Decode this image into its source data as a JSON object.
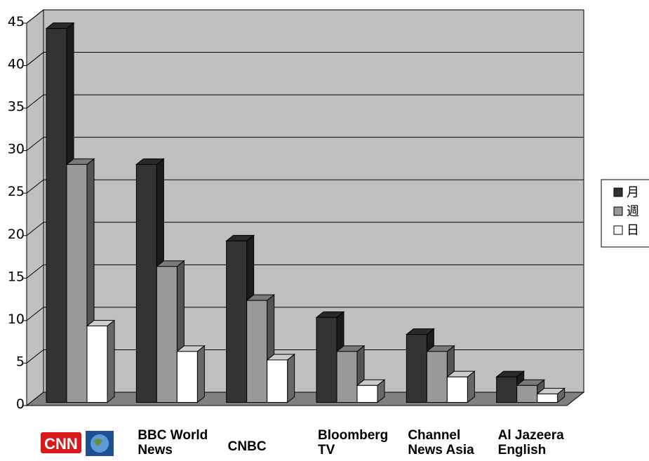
{
  "chart_data": {
    "type": "bar",
    "style": "3d-clustered-column",
    "categories": [
      "CNN",
      "BBC World\nNews",
      "CNBC",
      "Bloomberg\nTV",
      "Channel\nNews Asia",
      "Al Jazeera\nEnglish"
    ],
    "series": [
      {
        "name": "月",
        "values": [
          44,
          28,
          19,
          10,
          8,
          3
        ],
        "color": "#333333"
      },
      {
        "name": "週",
        "values": [
          28,
          16,
          12,
          6,
          6,
          2
        ],
        "color": "#999999"
      },
      {
        "name": "日",
        "values": [
          9,
          6,
          5,
          2,
          3,
          1
        ],
        "color": "#ffffff"
      }
    ],
    "ylim": [
      0,
      45
    ],
    "yticks": [
      0,
      5,
      10,
      15,
      20,
      25,
      30,
      35,
      40,
      45
    ],
    "grid": true,
    "legend": "right",
    "wall_color": "#c0c0c0",
    "floor_color": "#808080"
  },
  "logo": {
    "text": "CNN"
  }
}
